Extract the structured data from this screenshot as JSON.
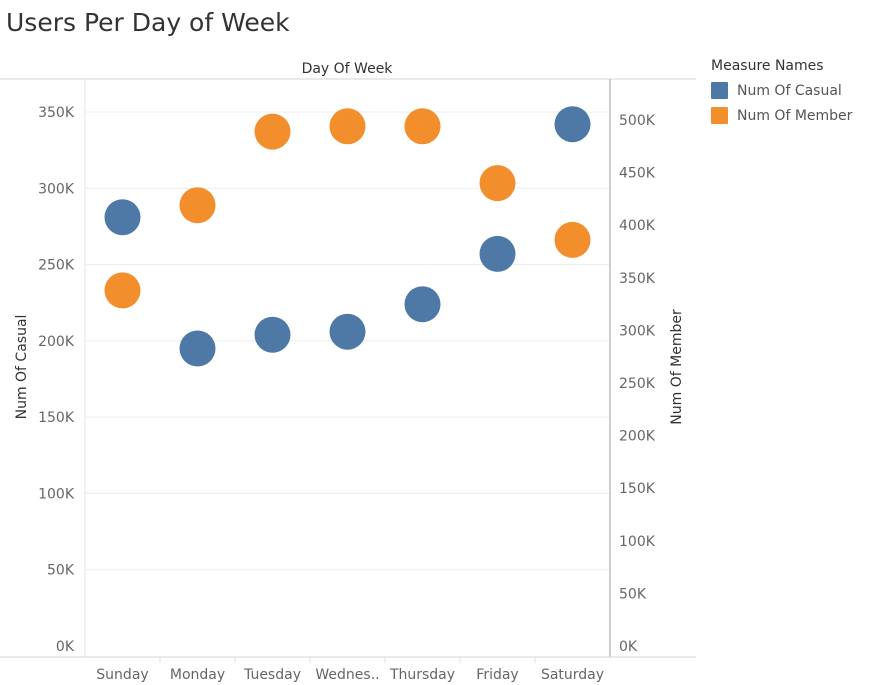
{
  "title": "Users Per Day of Week",
  "colors": {
    "casual": "#4e79a7",
    "member": "#f28e2b"
  },
  "legend": {
    "title": "Measure Names",
    "items": [
      {
        "label": "Num Of Casual",
        "color": "#4e79a7"
      },
      {
        "label": "Num Of Member",
        "color": "#f28e2b"
      }
    ]
  },
  "chart_data": {
    "type": "scatter",
    "title": "Users Per Day of Week",
    "xlabel": "Day Of Week",
    "ylabel": "Num Of Casual",
    "y2label": "Num Of Member",
    "categories": [
      "Sunday",
      "Monday",
      "Tuesday",
      "Wednes..",
      "Thursday",
      "Friday",
      "Saturday"
    ],
    "ylim": [
      0,
      370000
    ],
    "y2lim": [
      0,
      540000
    ],
    "yticks": [
      0,
      50000,
      100000,
      150000,
      200000,
      250000,
      300000,
      350000
    ],
    "ytick_labels": [
      "0K",
      "50K",
      "100K",
      "150K",
      "200K",
      "250K",
      "300K",
      "350K"
    ],
    "y2ticks": [
      0,
      50000,
      100000,
      150000,
      200000,
      250000,
      300000,
      350000,
      400000,
      450000,
      500000
    ],
    "y2tick_labels": [
      "0K",
      "50K",
      "100K",
      "150K",
      "200K",
      "250K",
      "300K",
      "350K",
      "400K",
      "450K",
      "500K"
    ],
    "series": [
      {
        "name": "Num Of Casual",
        "axis": "left",
        "color": "#4e79a7",
        "values": [
          281000,
          195000,
          204000,
          206000,
          224000,
          257000,
          342000
        ]
      },
      {
        "name": "Num Of Member",
        "axis": "right",
        "color": "#f28e2b",
        "values": [
          338000,
          419000,
          489000,
          494000,
          494000,
          440000,
          386000
        ]
      }
    ],
    "legend_position": "right",
    "grid": true
  }
}
